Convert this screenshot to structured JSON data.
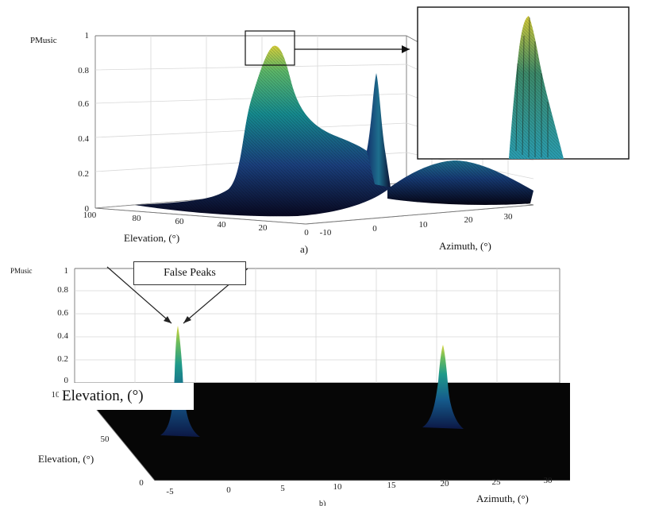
{
  "chart_data": [
    {
      "type": "surface",
      "panel_label": "a)",
      "zlabel": "PMusic",
      "xlabel": "Azimuth, (°)",
      "ylabel": "Elevation, (°)",
      "z_ticks": [
        "0",
        "0.2",
        "0.4",
        "0.6",
        "0.8",
        "1"
      ],
      "elevation_ticks": [
        "100",
        "80",
        "60",
        "40",
        "20",
        "0"
      ],
      "azimuth_ticks": [
        "-10",
        "0",
        "10",
        "20",
        "30"
      ],
      "zlim": [
        0,
        1
      ],
      "ylim": [
        0,
        100
      ],
      "xlim": [
        -10,
        35
      ],
      "peaks": [
        {
          "azimuth": -8,
          "elevation": 60,
          "value": 0.95
        },
        {
          "azimuth": 5,
          "elevation": 25,
          "value": 0.78
        },
        {
          "azimuth": 22,
          "elevation": 20,
          "value": 0.25
        }
      ],
      "colormap": [
        "#0d0a2e",
        "#1f3c7a",
        "#16738f",
        "#21a38a",
        "#76c25a",
        "#e7dc3a"
      ]
    },
    {
      "type": "surface",
      "panel_label": "b)",
      "zlabel": "PMusic",
      "xlabel": "Azimuth, (°)",
      "ylabel": "Elevation, (°)",
      "z_ticks": [
        "0",
        "0.2",
        "0.4",
        "0.6",
        "0.8",
        "1"
      ],
      "elevation_ticks": [
        "0",
        "50",
        "10"
      ],
      "azimuth_ticks": [
        "-5",
        "0",
        "5",
        "10",
        "15",
        "20",
        "25",
        "30"
      ],
      "zlim": [
        0,
        1
      ],
      "xlim": [
        -5,
        32
      ],
      "peaks": [
        {
          "azimuth": -3,
          "elevation": 60,
          "value": 0.55
        },
        {
          "azimuth": 20,
          "elevation": 40,
          "value": 0.33
        }
      ],
      "annotation": "False Peaks"
    }
  ],
  "overlay_text": "Elevation, (°)"
}
